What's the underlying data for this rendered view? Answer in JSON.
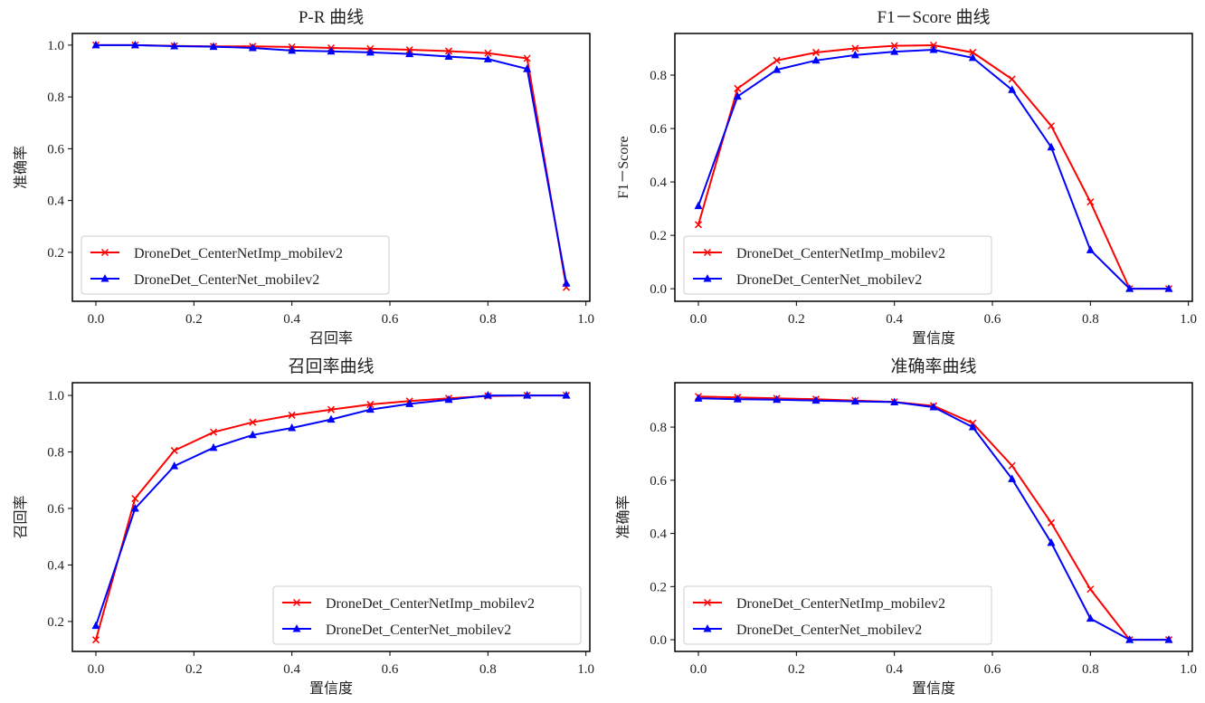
{
  "colors": {
    "series1": "#ff0000",
    "series2": "#0000ff",
    "axis": "#000000",
    "legend_border": "#cccccc"
  },
  "chart_data": [
    {
      "type": "line",
      "title": "P-R 曲线",
      "xlabel": "召回率",
      "ylabel": "准确率",
      "xlim": [
        -0.048,
        1.008
      ],
      "ylim": [
        0.011,
        1.045
      ],
      "xticks": [
        "0.0",
        "0.2",
        "0.4",
        "0.6",
        "0.8",
        "1.0"
      ],
      "yticks": [
        "0.2",
        "0.4",
        "0.6",
        "0.8",
        "1.0"
      ],
      "legend": "lower-left",
      "x": [
        0,
        0.08,
        0.16,
        0.24,
        0.32,
        0.4,
        0.48,
        0.56,
        0.64,
        0.72,
        0.8,
        0.88,
        0.96
      ],
      "series": [
        {
          "name": "DroneDet_CenterNetImp_mobilev2",
          "marker": "x",
          "values": [
            1.0,
            1.0,
            0.997,
            0.995,
            0.995,
            0.993,
            0.989,
            0.986,
            0.982,
            0.977,
            0.969,
            0.949,
            0.065
          ]
        },
        {
          "name": "DroneDet_CenterNet_mobilev2",
          "marker": "triangle",
          "values": [
            1.0,
            1.0,
            0.996,
            0.994,
            0.989,
            0.979,
            0.976,
            0.972,
            0.966,
            0.956,
            0.946,
            0.908,
            0.08
          ]
        }
      ]
    },
    {
      "type": "line",
      "title": "F1－Score 曲线",
      "xlabel": "置信度",
      "ylabel": "F1－Score",
      "xlim": [
        -0.048,
        1.008
      ],
      "ylim": [
        -0.047,
        0.956
      ],
      "xticks": [
        "0.0",
        "0.2",
        "0.4",
        "0.6",
        "0.8",
        "1.0"
      ],
      "yticks": [
        "0.0",
        "0.2",
        "0.4",
        "0.6",
        "0.8"
      ],
      "legend": "lower-left",
      "x": [
        0,
        0.08,
        0.16,
        0.24,
        0.32,
        0.4,
        0.48,
        0.56,
        0.64,
        0.72,
        0.8,
        0.88,
        0.96
      ],
      "series": [
        {
          "name": "DroneDet_CenterNetImp_mobilev2",
          "marker": "x",
          "values": [
            0.24,
            0.75,
            0.855,
            0.885,
            0.9,
            0.91,
            0.912,
            0.885,
            0.785,
            0.61,
            0.325,
            0.0,
            0.0
          ]
        },
        {
          "name": "DroneDet_CenterNet_mobilev2",
          "marker": "triangle",
          "values": [
            0.31,
            0.72,
            0.82,
            0.855,
            0.875,
            0.888,
            0.895,
            0.865,
            0.745,
            0.53,
            0.145,
            0.0,
            0.0
          ]
        }
      ]
    },
    {
      "type": "line",
      "title": "召回率曲线",
      "xlabel": "置信度",
      "ylabel": "召回率",
      "xlim": [
        -0.048,
        1.008
      ],
      "ylim": [
        0.094,
        1.045
      ],
      "xticks": [
        "0.0",
        "0.2",
        "0.4",
        "0.6",
        "0.8",
        "1.0"
      ],
      "yticks": [
        "0.2",
        "0.4",
        "0.6",
        "0.8",
        "1.0"
      ],
      "legend": "lower-right",
      "x": [
        0,
        0.08,
        0.16,
        0.24,
        0.32,
        0.4,
        0.48,
        0.56,
        0.64,
        0.72,
        0.8,
        0.88,
        0.96
      ],
      "series": [
        {
          "name": "DroneDet_CenterNetImp_mobilev2",
          "marker": "x",
          "values": [
            0.135,
            0.635,
            0.805,
            0.87,
            0.905,
            0.93,
            0.95,
            0.968,
            0.98,
            0.99,
            0.998,
            1.0,
            1.0
          ]
        },
        {
          "name": "DroneDet_CenterNet_mobilev2",
          "marker": "triangle",
          "values": [
            0.185,
            0.6,
            0.75,
            0.815,
            0.86,
            0.885,
            0.915,
            0.95,
            0.97,
            0.985,
            1.0,
            1.0,
            1.0
          ]
        }
      ]
    },
    {
      "type": "line",
      "title": "准确率曲线",
      "xlabel": "置信度",
      "ylabel": "准确率",
      "xlim": [
        -0.048,
        1.008
      ],
      "ylim": [
        -0.044,
        0.967
      ],
      "xticks": [
        "0.0",
        "0.2",
        "0.4",
        "0.6",
        "0.8",
        "1.0"
      ],
      "yticks": [
        "0.0",
        "0.2",
        "0.4",
        "0.6",
        "0.8"
      ],
      "legend": "lower-left",
      "x": [
        0,
        0.08,
        0.16,
        0.24,
        0.32,
        0.4,
        0.48,
        0.56,
        0.64,
        0.72,
        0.8,
        0.88,
        0.96
      ],
      "series": [
        {
          "name": "DroneDet_CenterNetImp_mobilev2",
          "marker": "x",
          "values": [
            0.915,
            0.912,
            0.908,
            0.905,
            0.9,
            0.895,
            0.88,
            0.815,
            0.655,
            0.44,
            0.19,
            0.0,
            0.0
          ]
        },
        {
          "name": "DroneDet_CenterNet_mobilev2",
          "marker": "triangle",
          "values": [
            0.908,
            0.905,
            0.903,
            0.9,
            0.897,
            0.894,
            0.875,
            0.8,
            0.605,
            0.365,
            0.08,
            0.0,
            0.0
          ]
        }
      ]
    }
  ]
}
